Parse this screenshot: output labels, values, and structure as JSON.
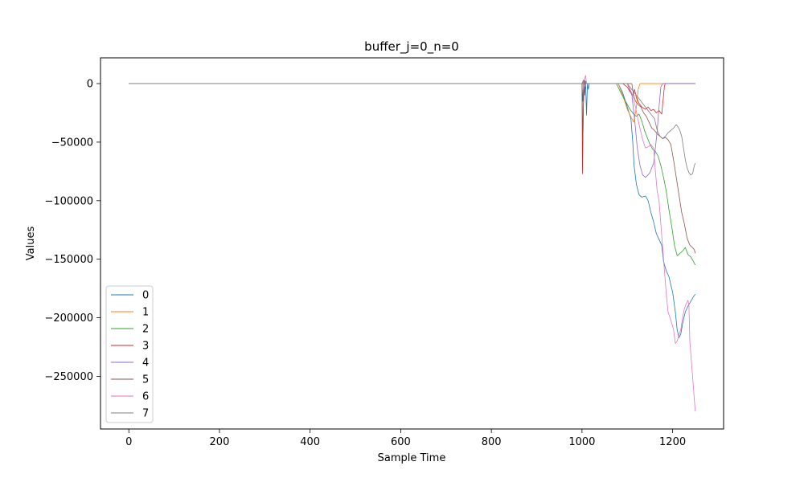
{
  "chart_data": {
    "type": "line",
    "title": "buffer_j=0_n=0",
    "xlabel": "Sample Time",
    "ylabel": "Values",
    "xlim": [
      -62.5,
      1312.5
    ],
    "ylim": [
      -295000,
      22000
    ],
    "xticks": [
      0,
      200,
      400,
      600,
      800,
      1000,
      1200
    ],
    "xtick_labels": [
      "0",
      "200",
      "400",
      "600",
      "800",
      "1000",
      "1200"
    ],
    "yticks": [
      0,
      -50000,
      -100000,
      -150000,
      -200000,
      -250000
    ],
    "ytick_labels": [
      "0",
      "−50000",
      "−100000",
      "−150000",
      "−200000",
      "−250000"
    ],
    "grid": false,
    "legend_position": "lower-left",
    "series": [
      {
        "name": "0",
        "color": "#1f77b4",
        "points": [
          [
            0,
            0
          ],
          [
            1000,
            0
          ],
          [
            1002,
            -15000
          ],
          [
            1004,
            0
          ],
          [
            1006,
            -10000
          ],
          [
            1008,
            2000
          ],
          [
            1010,
            -27000
          ],
          [
            1012,
            0
          ],
          [
            1014,
            -5000
          ],
          [
            1016,
            0
          ],
          [
            1080,
            0
          ],
          [
            1090,
            -8000
          ],
          [
            1100,
            -20000
          ],
          [
            1108,
            -30000
          ],
          [
            1112,
            -50000
          ],
          [
            1115,
            -70000
          ],
          [
            1120,
            -86000
          ],
          [
            1126,
            -95000
          ],
          [
            1132,
            -97000
          ],
          [
            1140,
            -96000
          ],
          [
            1146,
            -100000
          ],
          [
            1152,
            -110000
          ],
          [
            1158,
            -118000
          ],
          [
            1164,
            -128000
          ],
          [
            1170,
            -133000
          ],
          [
            1176,
            -138000
          ],
          [
            1180,
            -152000
          ],
          [
            1186,
            -160000
          ],
          [
            1192,
            -165000
          ],
          [
            1196,
            -172000
          ],
          [
            1200,
            -178000
          ],
          [
            1206,
            -195000
          ],
          [
            1210,
            -210000
          ],
          [
            1214,
            -217000
          ],
          [
            1218,
            -214000
          ],
          [
            1222,
            -205000
          ],
          [
            1228,
            -195000
          ],
          [
            1234,
            -190000
          ],
          [
            1240,
            -186000
          ],
          [
            1246,
            -182000
          ],
          [
            1250,
            -180000
          ]
        ]
      },
      {
        "name": "1",
        "color": "#ff7f0e",
        "points": [
          [
            0,
            0
          ],
          [
            1080,
            0
          ],
          [
            1090,
            -10000
          ],
          [
            1100,
            -22000
          ],
          [
            1110,
            -30000
          ],
          [
            1114,
            -33000
          ],
          [
            1118,
            -25000
          ],
          [
            1120,
            -20000
          ],
          [
            1124,
            -5000
          ],
          [
            1128,
            0
          ],
          [
            1250,
            0
          ]
        ]
      },
      {
        "name": "2",
        "color": "#2ca02c",
        "points": [
          [
            0,
            0
          ],
          [
            1076,
            0
          ],
          [
            1086,
            -8000
          ],
          [
            1096,
            -15000
          ],
          [
            1106,
            -22000
          ],
          [
            1114,
            -26000
          ],
          [
            1120,
            -28000
          ],
          [
            1126,
            -26000
          ],
          [
            1132,
            -32000
          ],
          [
            1138,
            -40000
          ],
          [
            1144,
            -46000
          ],
          [
            1150,
            -52000
          ],
          [
            1156,
            -56000
          ],
          [
            1162,
            -58000
          ],
          [
            1168,
            -62000
          ],
          [
            1174,
            -70000
          ],
          [
            1180,
            -80000
          ],
          [
            1186,
            -92000
          ],
          [
            1192,
            -108000
          ],
          [
            1198,
            -122000
          ],
          [
            1204,
            -138000
          ],
          [
            1210,
            -147000
          ],
          [
            1216,
            -145000
          ],
          [
            1222,
            -143000
          ],
          [
            1228,
            -140000
          ],
          [
            1234,
            -146000
          ],
          [
            1240,
            -148000
          ],
          [
            1246,
            -152000
          ],
          [
            1250,
            -155000
          ]
        ]
      },
      {
        "name": "3",
        "color": "#d62728",
        "points": [
          [
            0,
            0
          ],
          [
            1000,
            0
          ],
          [
            1001,
            -77000
          ],
          [
            1003,
            -20000
          ],
          [
            1005,
            0
          ],
          [
            1090,
            0
          ],
          [
            1100,
            -3000
          ],
          [
            1106,
            -7000
          ],
          [
            1112,
            -10000
          ],
          [
            1116,
            -5000
          ],
          [
            1120,
            -12000
          ],
          [
            1126,
            -17000
          ],
          [
            1132,
            -20000
          ],
          [
            1140,
            -22000
          ],
          [
            1146,
            -20000
          ],
          [
            1152,
            -23000
          ],
          [
            1158,
            -22000
          ],
          [
            1164,
            -25000
          ],
          [
            1170,
            -23000
          ],
          [
            1176,
            -26000
          ],
          [
            1178,
            -18000
          ],
          [
            1182,
            -2000
          ],
          [
            1184,
            0
          ],
          [
            1250,
            0
          ]
        ]
      },
      {
        "name": "4",
        "color": "#9467bd",
        "points": [
          [
            0,
            0
          ],
          [
            1000,
            0
          ],
          [
            1003,
            3000
          ],
          [
            1006,
            -5000
          ],
          [
            1008,
            0
          ],
          [
            1010,
            0
          ],
          [
            1100,
            0
          ],
          [
            1110,
            -10000
          ],
          [
            1116,
            -30000
          ],
          [
            1122,
            -55000
          ],
          [
            1128,
            -70000
          ],
          [
            1134,
            -78000
          ],
          [
            1140,
            -80000
          ],
          [
            1146,
            -78000
          ],
          [
            1150,
            -76000
          ],
          [
            1154,
            -72000
          ],
          [
            1158,
            -68000
          ],
          [
            1162,
            -55000
          ],
          [
            1166,
            -40000
          ],
          [
            1170,
            -20000
          ],
          [
            1174,
            -3000
          ],
          [
            1178,
            0
          ],
          [
            1250,
            0
          ]
        ]
      },
      {
        "name": "5",
        "color": "#8c564b",
        "points": [
          [
            0,
            0
          ],
          [
            1000,
            0
          ],
          [
            1002,
            -48000
          ],
          [
            1004,
            0
          ],
          [
            1006,
            2000
          ],
          [
            1008,
            0
          ],
          [
            1110,
            0
          ],
          [
            1114,
            -10000
          ],
          [
            1118,
            -15000
          ],
          [
            1124,
            -18000
          ],
          [
            1130,
            -20000
          ],
          [
            1136,
            -25000
          ],
          [
            1142,
            -28000
          ],
          [
            1148,
            -33000
          ],
          [
            1154,
            -38000
          ],
          [
            1160,
            -40000
          ],
          [
            1166,
            -43000
          ],
          [
            1172,
            -45000
          ],
          [
            1178,
            -47000
          ],
          [
            1184,
            -46000
          ],
          [
            1190,
            -48000
          ],
          [
            1196,
            -52000
          ],
          [
            1202,
            -65000
          ],
          [
            1208,
            -80000
          ],
          [
            1214,
            -95000
          ],
          [
            1220,
            -110000
          ],
          [
            1226,
            -120000
          ],
          [
            1232,
            -132000
          ],
          [
            1238,
            -138000
          ],
          [
            1244,
            -140000
          ],
          [
            1248,
            -142000
          ],
          [
            1250,
            -145000
          ]
        ]
      },
      {
        "name": "6",
        "color": "#e377c2",
        "points": [
          [
            0,
            0
          ],
          [
            1000,
            0
          ],
          [
            1004,
            2000
          ],
          [
            1008,
            7000
          ],
          [
            1010,
            0
          ],
          [
            1100,
            0
          ],
          [
            1110,
            -8000
          ],
          [
            1118,
            -20000
          ],
          [
            1126,
            -35000
          ],
          [
            1134,
            -48000
          ],
          [
            1140,
            -55000
          ],
          [
            1146,
            -54000
          ],
          [
            1152,
            -52000
          ],
          [
            1158,
            -55000
          ],
          [
            1162,
            -75000
          ],
          [
            1166,
            -92000
          ],
          [
            1170,
            -100000
          ],
          [
            1174,
            -120000
          ],
          [
            1178,
            -140000
          ],
          [
            1182,
            -160000
          ],
          [
            1186,
            -180000
          ],
          [
            1190,
            -195000
          ],
          [
            1196,
            -202000
          ],
          [
            1202,
            -210000
          ],
          [
            1206,
            -222000
          ],
          [
            1210,
            -220000
          ],
          [
            1214,
            -215000
          ],
          [
            1218,
            -210000
          ],
          [
            1222,
            -200000
          ],
          [
            1226,
            -192000
          ],
          [
            1230,
            -188000
          ],
          [
            1234,
            -185000
          ],
          [
            1236,
            -190000
          ],
          [
            1238,
            -220000
          ],
          [
            1242,
            -240000
          ],
          [
            1246,
            -260000
          ],
          [
            1250,
            -280000
          ]
        ]
      },
      {
        "name": "7",
        "color": "#7f7f7f",
        "points": [
          [
            0,
            0
          ],
          [
            1000,
            0
          ],
          [
            1006,
            3000
          ],
          [
            1010,
            0
          ],
          [
            1100,
            0
          ],
          [
            1110,
            -5000
          ],
          [
            1120,
            -10000
          ],
          [
            1130,
            -15000
          ],
          [
            1140,
            -20000
          ],
          [
            1150,
            -25000
          ],
          [
            1160,
            -30000
          ],
          [
            1166,
            -40000
          ],
          [
            1172,
            -45000
          ],
          [
            1178,
            -47000
          ],
          [
            1184,
            -45000
          ],
          [
            1190,
            -42000
          ],
          [
            1196,
            -40000
          ],
          [
            1202,
            -38000
          ],
          [
            1208,
            -35000
          ],
          [
            1212,
            -37000
          ],
          [
            1216,
            -40000
          ],
          [
            1220,
            -45000
          ],
          [
            1224,
            -55000
          ],
          [
            1228,
            -65000
          ],
          [
            1232,
            -72000
          ],
          [
            1236,
            -76000
          ],
          [
            1240,
            -78000
          ],
          [
            1244,
            -77000
          ],
          [
            1248,
            -70000
          ],
          [
            1250,
            -68000
          ]
        ]
      }
    ]
  }
}
